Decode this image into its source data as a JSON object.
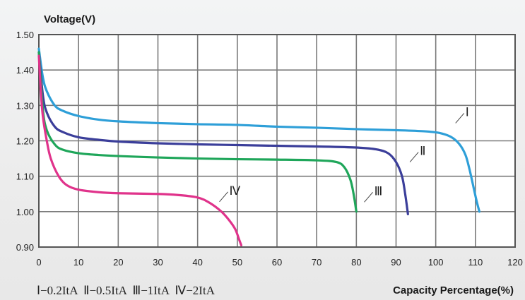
{
  "chart_data": {
    "type": "line",
    "ylabel": "Voltage(V)",
    "xlabel": "Capacity Percentage(%)",
    "xlim": [
      0,
      120
    ],
    "ylim": [
      0.9,
      1.5
    ],
    "x_ticks": [
      "0",
      "10",
      "20",
      "30",
      "40",
      "50",
      "60",
      "70",
      "80",
      "90",
      "100",
      "110",
      "120"
    ],
    "y_ticks": [
      "1.50",
      "1.40",
      "1.30",
      "1.20",
      "1.10",
      "1.00",
      "0.90"
    ],
    "grid": true,
    "legend_text": "Ⅰ−0.2ItA  Ⅱ−0.5ItA  Ⅲ−1ItA  Ⅳ−2ItA",
    "series": [
      {
        "name": "Ⅰ",
        "color": "#2e9fd8",
        "points": [
          [
            0,
            1.46
          ],
          [
            1,
            1.38
          ],
          [
            2,
            1.34
          ],
          [
            4,
            1.3
          ],
          [
            6,
            1.285
          ],
          [
            10,
            1.27
          ],
          [
            15,
            1.26
          ],
          [
            20,
            1.255
          ],
          [
            30,
            1.25
          ],
          [
            40,
            1.247
          ],
          [
            50,
            1.245
          ],
          [
            60,
            1.24
          ],
          [
            70,
            1.237
          ],
          [
            80,
            1.233
          ],
          [
            90,
            1.23
          ],
          [
            97,
            1.227
          ],
          [
            101,
            1.222
          ],
          [
            104,
            1.21
          ],
          [
            106,
            1.19
          ],
          [
            107.5,
            1.16
          ],
          [
            108.5,
            1.12
          ],
          [
            109.5,
            1.07
          ],
          [
            110.3,
            1.03
          ],
          [
            111,
            1.0
          ]
        ],
        "label_at": [
          105,
          1.25
        ]
      },
      {
        "name": "Ⅱ",
        "color": "#3b3e9a",
        "points": [
          [
            0,
            1.45
          ],
          [
            1,
            1.33
          ],
          [
            2,
            1.28
          ],
          [
            4,
            1.24
          ],
          [
            6,
            1.225
          ],
          [
            10,
            1.21
          ],
          [
            15,
            1.203
          ],
          [
            20,
            1.198
          ],
          [
            30,
            1.193
          ],
          [
            40,
            1.19
          ],
          [
            50,
            1.188
          ],
          [
            60,
            1.186
          ],
          [
            70,
            1.184
          ],
          [
            80,
            1.181
          ],
          [
            85,
            1.176
          ],
          [
            88,
            1.165
          ],
          [
            90,
            1.14
          ],
          [
            91.5,
            1.1
          ],
          [
            92.3,
            1.05
          ],
          [
            93,
            0.993
          ]
        ],
        "label_at": [
          93.5,
          1.14
        ]
      },
      {
        "name": "Ⅲ",
        "color": "#1fa65a",
        "points": [
          [
            0,
            1.45
          ],
          [
            1,
            1.29
          ],
          [
            2,
            1.23
          ],
          [
            4,
            1.19
          ],
          [
            6,
            1.175
          ],
          [
            10,
            1.165
          ],
          [
            15,
            1.16
          ],
          [
            20,
            1.157
          ],
          [
            30,
            1.153
          ],
          [
            40,
            1.15
          ],
          [
            50,
            1.148
          ],
          [
            60,
            1.147
          ],
          [
            70,
            1.145
          ],
          [
            75,
            1.14
          ],
          [
            77,
            1.125
          ],
          [
            78.5,
            1.09
          ],
          [
            79.3,
            1.05
          ],
          [
            80,
            1.0
          ]
        ],
        "label_at": [
          82,
          1.027
        ]
      },
      {
        "name": "Ⅳ",
        "color": "#e0338b",
        "points": [
          [
            0,
            1.44
          ],
          [
            0.5,
            1.34
          ],
          [
            1,
            1.27
          ],
          [
            2,
            1.2
          ],
          [
            3,
            1.15
          ],
          [
            5,
            1.1
          ],
          [
            7,
            1.075
          ],
          [
            10,
            1.062
          ],
          [
            15,
            1.055
          ],
          [
            20,
            1.052
          ],
          [
            30,
            1.05
          ],
          [
            35,
            1.047
          ],
          [
            40,
            1.04
          ],
          [
            43,
            1.025
          ],
          [
            46,
            1.0
          ],
          [
            48,
            0.975
          ],
          [
            49.5,
            0.95
          ],
          [
            50.5,
            0.92
          ],
          [
            51,
            0.905
          ]
        ],
        "label_at": [
          45.5,
          1.028
        ]
      }
    ]
  }
}
